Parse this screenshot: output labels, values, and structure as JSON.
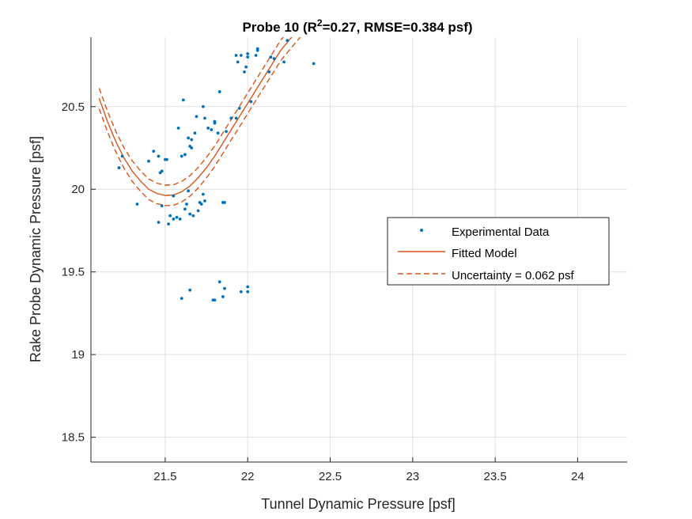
{
  "chart_data": {
    "type": "scatter",
    "title_parts": {
      "prefix": "Probe 10 (R",
      "superscript": "2",
      "suffix": "=0.27, RMSE=0.384 psf)"
    },
    "xlabel": "Tunnel Dynamic Pressure [psf]",
    "ylabel": "Rake Probe Dynamic Pressure [psf]",
    "xlim": [
      21.05,
      24.3
    ],
    "ylim": [
      18.35,
      20.92
    ],
    "xticks": [
      21.5,
      22,
      22.5,
      23,
      23.5,
      24
    ],
    "xtick_labels": [
      "21.5",
      "22",
      "22.5",
      "23",
      "23.5",
      "24"
    ],
    "yticks": [
      18.5,
      19,
      19.5,
      20,
      20.5
    ],
    "ytick_labels": [
      "18.5",
      "19",
      "19.5",
      "20",
      "20.5"
    ],
    "grid": true,
    "legend_position": "east",
    "colors": {
      "data": "#0072BD",
      "model": "#D95319"
    },
    "series": [
      {
        "name": "Experimental Data",
        "style": "dots",
        "x": [
          21.22,
          21.24,
          21.33,
          21.4,
          21.43,
          21.46,
          21.46,
          21.47,
          21.48,
          21.5,
          21.51,
          21.52,
          21.53,
          21.55,
          21.57,
          21.58,
          21.59,
          21.6,
          21.61,
          21.62,
          21.62,
          21.63,
          21.64,
          21.65,
          21.65,
          21.66,
          21.66,
          21.67,
          21.68,
          21.69,
          21.7,
          21.71,
          21.72,
          21.73,
          21.74,
          21.74,
          21.76,
          21.78,
          21.8,
          21.8,
          21.82,
          21.83,
          21.85,
          21.86,
          21.87,
          21.93,
          21.94,
          21.95,
          21.96,
          21.98,
          21.99,
          22.0,
          22.0,
          22.02,
          22.05,
          22.06,
          22.06,
          22.13,
          22.14,
          22.16,
          22.22,
          22.24,
          22.4,
          21.6,
          21.65,
          21.79,
          21.8,
          21.83,
          21.85,
          21.86,
          21.96,
          22.0,
          22.0,
          21.48,
          21.55,
          21.64,
          21.73,
          21.9,
          21.93,
          21.62
        ],
        "y": [
          20.13,
          20.2,
          19.91,
          20.17,
          20.23,
          20.2,
          19.8,
          20.1,
          19.9,
          20.18,
          20.18,
          19.79,
          19.84,
          19.82,
          19.83,
          20.37,
          19.82,
          20.2,
          20.54,
          20.21,
          19.88,
          19.91,
          20.31,
          20.26,
          19.85,
          20.3,
          20.25,
          19.84,
          20.34,
          20.44,
          19.87,
          19.92,
          19.91,
          20.5,
          20.43,
          19.93,
          20.37,
          20.36,
          20.4,
          20.41,
          20.34,
          20.59,
          19.92,
          19.92,
          20.35,
          20.43,
          20.77,
          20.49,
          20.81,
          20.71,
          20.74,
          20.82,
          20.8,
          20.53,
          20.81,
          20.84,
          20.85,
          20.71,
          20.8,
          20.79,
          20.77,
          20.9,
          20.76,
          19.34,
          19.39,
          19.33,
          19.33,
          19.44,
          19.35,
          19.4,
          19.38,
          19.38,
          19.41,
          20.11,
          19.96,
          19.99,
          19.97,
          20.43,
          20.81,
          20.21
        ]
      },
      {
        "name": "Fitted Model",
        "style": "solid",
        "x": [
          21.1,
          21.15,
          21.2,
          21.25,
          21.3,
          21.35,
          21.4,
          21.45,
          21.5,
          21.55,
          21.6,
          21.65,
          21.7,
          21.75,
          21.8,
          21.85,
          21.9,
          21.95,
          22.0,
          22.05,
          22.1,
          22.15,
          22.2,
          22.25,
          22.3,
          22.35
        ],
        "y": [
          20.55,
          20.41,
          20.29,
          20.19,
          20.11,
          20.05,
          20.0,
          19.975,
          19.963,
          19.965,
          19.985,
          20.02,
          20.07,
          20.13,
          20.2,
          20.28,
          20.36,
          20.44,
          20.52,
          20.6,
          20.68,
          20.76,
          20.84,
          20.9,
          20.96,
          21.02
        ]
      },
      {
        "name": "Uncertainty = 0.062 psf",
        "style": "dashed",
        "offset": 0.062
      }
    ]
  }
}
